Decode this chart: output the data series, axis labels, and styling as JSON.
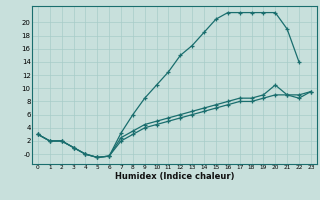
{
  "xlabel": "Humidex (Indice chaleur)",
  "bg_color": "#c8e0dc",
  "grid_color": "#a8ccc8",
  "line_color": "#1a6e6e",
  "xlim": [
    -0.5,
    23.5
  ],
  "ylim": [
    -1.5,
    22.5
  ],
  "xticks": [
    0,
    1,
    2,
    3,
    4,
    5,
    6,
    7,
    8,
    9,
    10,
    11,
    12,
    13,
    14,
    15,
    16,
    17,
    18,
    19,
    20,
    21,
    22,
    23
  ],
  "yticks": [
    0,
    2,
    4,
    6,
    8,
    10,
    12,
    14,
    16,
    18,
    20
  ],
  "ytick_labels": [
    "-0",
    "2",
    "4",
    "6",
    "8",
    "10",
    "12",
    "14",
    "16",
    "18",
    "20"
  ],
  "line1_x": [
    0,
    1,
    2,
    3,
    4,
    5,
    6,
    7,
    8,
    9,
    10,
    11,
    12,
    13,
    14,
    15,
    16,
    17,
    18,
    19,
    20,
    21,
    22
  ],
  "line1_y": [
    3.0,
    2.0,
    2.0,
    1.0,
    0.0,
    -0.5,
    -0.3,
    3.2,
    6.0,
    8.5,
    10.5,
    12.5,
    15.0,
    16.5,
    18.5,
    20.5,
    21.5,
    21.5,
    21.5,
    21.5,
    21.5,
    19.0,
    14.0
  ],
  "line2_x": [
    0,
    1,
    2,
    3,
    4,
    5,
    6,
    7,
    8,
    9,
    10,
    11,
    12,
    13,
    14,
    15,
    16,
    17,
    18,
    19,
    20,
    21,
    22,
    23
  ],
  "line2_y": [
    3.0,
    2.0,
    2.0,
    1.0,
    0.0,
    -0.5,
    -0.3,
    2.5,
    3.5,
    4.5,
    5.0,
    5.5,
    6.0,
    6.5,
    7.0,
    7.5,
    8.0,
    8.5,
    8.5,
    9.0,
    10.5,
    9.0,
    9.0,
    9.5
  ],
  "line3_x": [
    0,
    1,
    2,
    3,
    4,
    5,
    6,
    7,
    8,
    9,
    10,
    11,
    12,
    13,
    14,
    15,
    16,
    17,
    18,
    19,
    20,
    21,
    22,
    23
  ],
  "line3_y": [
    3.0,
    2.0,
    2.0,
    1.0,
    0.0,
    -0.5,
    -0.3,
    2.0,
    3.0,
    4.0,
    4.5,
    5.0,
    5.5,
    6.0,
    6.5,
    7.0,
    7.5,
    8.0,
    8.0,
    8.5,
    9.0,
    9.0,
    8.5,
    9.5
  ]
}
